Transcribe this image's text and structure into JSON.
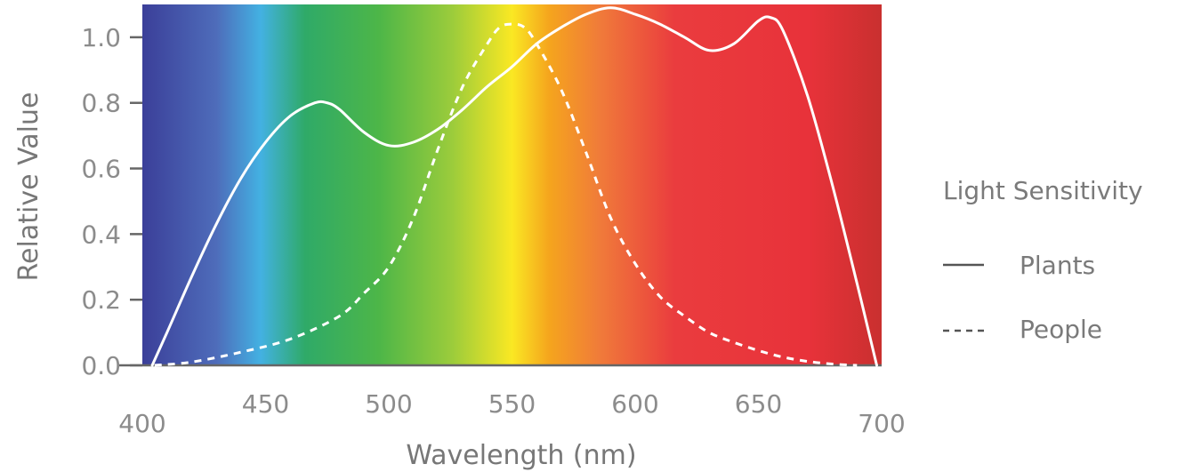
{
  "chart_data": {
    "type": "line",
    "xlabel": "Wavelength (nm)",
    "ylabel": "Relative Value",
    "xlim": [
      400,
      700
    ],
    "ylim": [
      0,
      1.1
    ],
    "x_ticks": [
      400,
      450,
      500,
      550,
      600,
      650,
      700
    ],
    "x_tick_labels": [
      "400",
      "450",
      "500",
      "550",
      "600",
      "650",
      "700"
    ],
    "y_ticks": [
      0.0,
      0.2,
      0.4,
      0.6,
      0.8,
      1.0
    ],
    "y_tick_labels": [
      "0.0",
      "0.2",
      "0.4",
      "0.6",
      "0.8",
      "1.0"
    ],
    "background": "visible spectrum gradient (violet to red)",
    "grid": false,
    "legend": {
      "title": "Light Sensitivity",
      "position": "right"
    },
    "series": [
      {
        "name": "Plants",
        "line_style": "solid",
        "color": "#ffffff",
        "points": [
          [
            404,
            0.0
          ],
          [
            410,
            0.1
          ],
          [
            420,
            0.27
          ],
          [
            430,
            0.43
          ],
          [
            440,
            0.57
          ],
          [
            450,
            0.68
          ],
          [
            460,
            0.76
          ],
          [
            470,
            0.8
          ],
          [
            475,
            0.8
          ],
          [
            480,
            0.78
          ],
          [
            490,
            0.71
          ],
          [
            500,
            0.67
          ],
          [
            510,
            0.68
          ],
          [
            520,
            0.72
          ],
          [
            530,
            0.78
          ],
          [
            540,
            0.85
          ],
          [
            550,
            0.91
          ],
          [
            560,
            0.98
          ],
          [
            570,
            1.03
          ],
          [
            580,
            1.07
          ],
          [
            590,
            1.09
          ],
          [
            600,
            1.07
          ],
          [
            610,
            1.04
          ],
          [
            620,
            1.0
          ],
          [
            630,
            0.96
          ],
          [
            640,
            0.98
          ],
          [
            650,
            1.05
          ],
          [
            655,
            1.06
          ],
          [
            660,
            1.02
          ],
          [
            670,
            0.82
          ],
          [
            680,
            0.55
          ],
          [
            690,
            0.25
          ],
          [
            698,
            0.0
          ]
        ]
      },
      {
        "name": "People",
        "line_style": "dashed",
        "color": "#ffffff",
        "points": [
          [
            405,
            0.0
          ],
          [
            420,
            0.01
          ],
          [
            440,
            0.04
          ],
          [
            460,
            0.08
          ],
          [
            480,
            0.15
          ],
          [
            490,
            0.22
          ],
          [
            500,
            0.3
          ],
          [
            510,
            0.45
          ],
          [
            520,
            0.66
          ],
          [
            530,
            0.85
          ],
          [
            540,
            0.98
          ],
          [
            545,
            1.03
          ],
          [
            550,
            1.04
          ],
          [
            555,
            1.03
          ],
          [
            560,
            0.98
          ],
          [
            570,
            0.84
          ],
          [
            580,
            0.65
          ],
          [
            590,
            0.45
          ],
          [
            600,
            0.31
          ],
          [
            610,
            0.21
          ],
          [
            620,
            0.15
          ],
          [
            630,
            0.1
          ],
          [
            640,
            0.07
          ],
          [
            650,
            0.045
          ],
          [
            660,
            0.025
          ],
          [
            670,
            0.012
          ],
          [
            680,
            0.004
          ],
          [
            690,
            0.0
          ]
        ]
      }
    ]
  },
  "colors": {
    "axis": "#666666",
    "tick_text": "#8c8c8c",
    "line": "#ffffff"
  }
}
